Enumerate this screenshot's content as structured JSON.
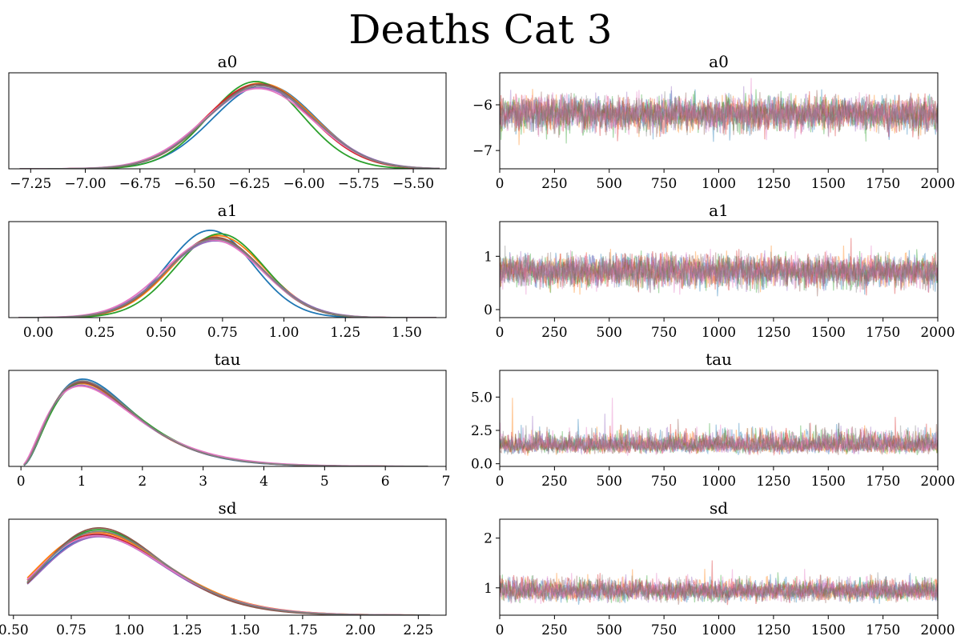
{
  "figure": {
    "title": "Deaths Cat 3",
    "colors": [
      "#1f77b4",
      "#ff7f0e",
      "#2ca02c",
      "#d62728",
      "#9467bd",
      "#8c564b",
      "#e377c2",
      "#7f7f7f"
    ]
  },
  "chart_data": [
    {
      "type": "line",
      "variant": "kde",
      "title": "a0",
      "xlim": [
        -7.35,
        -5.35
      ],
      "ylim": [
        0,
        1.1
      ],
      "xticks": [
        -7.25,
        -7.0,
        -6.75,
        -6.5,
        -6.25,
        -6.0,
        -5.75,
        -5.5
      ],
      "xtick_labels": [
        "−7.25",
        "−7.00",
        "−6.75",
        "−6.50",
        "−6.25",
        "−6.00",
        "−5.75",
        "−5.50"
      ],
      "yticks_shown": false,
      "x_range": [
        -7.3,
        -5.38
      ],
      "series": [
        {
          "mu": -6.18,
          "sd": 0.235,
          "peak": 0.96
        },
        {
          "mu": -6.2,
          "sd": 0.245,
          "peak": 0.98
        },
        {
          "mu": -6.22,
          "sd": 0.215,
          "peak": 1.0
        },
        {
          "mu": -6.21,
          "sd": 0.24,
          "peak": 0.97
        },
        {
          "mu": -6.2,
          "sd": 0.25,
          "peak": 0.93
        },
        {
          "mu": -6.2,
          "sd": 0.24,
          "peak": 0.97
        },
        {
          "mu": -6.21,
          "sd": 0.25,
          "peak": 0.92
        },
        {
          "mu": -6.2,
          "sd": 0.245,
          "peak": 0.95
        }
      ]
    },
    {
      "type": "line",
      "variant": "trace",
      "title": "a0",
      "xlim": [
        0,
        2000
      ],
      "ylim": [
        -7.4,
        -5.3
      ],
      "xticks": [
        0,
        250,
        500,
        750,
        1000,
        1250,
        1500,
        1750,
        2000
      ],
      "yticks": [
        -7,
        -6
      ],
      "ytick_labels": [
        "−7",
        "−6"
      ],
      "mean": -6.2,
      "spread": 0.24,
      "skew": 0,
      "min_value": -7.3,
      "max_value": -5.35
    },
    {
      "type": "line",
      "variant": "kde",
      "title": "a1",
      "xlim": [
        -0.12,
        1.66
      ],
      "ylim": [
        0,
        1.1
      ],
      "xticks": [
        0.0,
        0.25,
        0.5,
        0.75,
        1.0,
        1.25,
        1.5
      ],
      "xtick_labels": [
        "0.00",
        "0.25",
        "0.50",
        "0.75",
        "1.00",
        "1.25",
        "1.50"
      ],
      "yticks_shown": false,
      "x_range": [
        -0.08,
        1.62
      ],
      "series": [
        {
          "mu": 0.7,
          "sd": 0.175,
          "peak": 1.0
        },
        {
          "mu": 0.73,
          "sd": 0.19,
          "peak": 0.94
        },
        {
          "mu": 0.74,
          "sd": 0.18,
          "peak": 0.96
        },
        {
          "mu": 0.72,
          "sd": 0.195,
          "peak": 0.91
        },
        {
          "mu": 0.72,
          "sd": 0.2,
          "peak": 0.88
        },
        {
          "mu": 0.72,
          "sd": 0.19,
          "peak": 0.92
        },
        {
          "mu": 0.71,
          "sd": 0.2,
          "peak": 0.89
        },
        {
          "mu": 0.72,
          "sd": 0.195,
          "peak": 0.9
        }
      ]
    },
    {
      "type": "line",
      "variant": "trace",
      "title": "a1",
      "xlim": [
        0,
        2000
      ],
      "ylim": [
        -0.15,
        1.65
      ],
      "xticks": [
        0,
        250,
        500,
        750,
        1000,
        1250,
        1500,
        1750,
        2000
      ],
      "yticks": [
        0,
        1
      ],
      "ytick_labels": [
        "0",
        "1"
      ],
      "mean": 0.72,
      "spread": 0.19,
      "skew": 0,
      "min_value": -0.08,
      "max_value": 1.6
    },
    {
      "type": "line",
      "variant": "kde",
      "title": "tau",
      "xlim": [
        -0.2,
        7.0
      ],
      "ylim": [
        0,
        1.1
      ],
      "xticks": [
        0,
        1,
        2,
        3,
        4,
        5,
        6,
        7
      ],
      "xtick_labels": [
        "0",
        "1",
        "2",
        "3",
        "4",
        "5",
        "6",
        "7"
      ],
      "yticks_shown": false,
      "x_range": [
        0.05,
        6.7
      ],
      "series": [
        {
          "mode": 1.02,
          "shape": 3.2,
          "peak": 1.0
        },
        {
          "mode": 1.0,
          "shape": 3.0,
          "peak": 0.95
        },
        {
          "mode": 1.03,
          "shape": 3.1,
          "peak": 0.96
        },
        {
          "mode": 1.0,
          "shape": 3.05,
          "peak": 0.97
        },
        {
          "mode": 0.99,
          "shape": 2.9,
          "peak": 0.93
        },
        {
          "mode": 1.0,
          "shape": 3.0,
          "peak": 0.96
        },
        {
          "mode": 0.98,
          "shape": 2.8,
          "peak": 0.92
        },
        {
          "mode": 1.01,
          "shape": 3.1,
          "peak": 0.98
        }
      ]
    },
    {
      "type": "line",
      "variant": "trace",
      "title": "tau",
      "xlim": [
        0,
        2000
      ],
      "ylim": [
        -0.2,
        7.0
      ],
      "xticks": [
        0,
        250,
        500,
        750,
        1000,
        1250,
        1500,
        1750,
        2000
      ],
      "yticks": [
        0.0,
        2.5,
        5.0
      ],
      "ytick_labels": [
        "0.0",
        "2.5",
        "5.0"
      ],
      "mean": 1.35,
      "spread": 0.55,
      "skew": 1,
      "min_value": 0.05,
      "max_value": 6.7
    },
    {
      "type": "line",
      "variant": "kde",
      "title": "sd",
      "xlim": [
        0.48,
        2.37
      ],
      "ylim": [
        0,
        1.1
      ],
      "xticks": [
        0.5,
        0.75,
        1.0,
        1.25,
        1.5,
        1.75,
        2.0,
        2.25
      ],
      "xtick_labels": [
        "0.50",
        "0.75",
        "1.00",
        "1.25",
        "1.50",
        "1.75",
        "2.00",
        "2.25"
      ],
      "yticks_shown": false,
      "x_range": [
        0.56,
        2.3
      ],
      "series": [
        {
          "mode": 0.87,
          "shape": 12,
          "peak": 0.92
        },
        {
          "mode": 0.86,
          "shape": 11,
          "peak": 0.95
        },
        {
          "mode": 0.87,
          "shape": 12.5,
          "peak": 0.98
        },
        {
          "mode": 0.86,
          "shape": 11.5,
          "peak": 0.93
        },
        {
          "mode": 0.87,
          "shape": 12,
          "peak": 0.9
        },
        {
          "mode": 0.87,
          "shape": 13,
          "peak": 1.0
        },
        {
          "mode": 0.86,
          "shape": 11,
          "peak": 0.91
        },
        {
          "mode": 0.87,
          "shape": 12,
          "peak": 0.96
        }
      ]
    },
    {
      "type": "line",
      "variant": "trace",
      "title": "sd",
      "xlim": [
        0,
        2000
      ],
      "ylim": [
        0.45,
        2.38
      ],
      "xticks": [
        0,
        250,
        500,
        750,
        1000,
        1250,
        1500,
        1750,
        2000
      ],
      "yticks": [
        1,
        2
      ],
      "ytick_labels": [
        "1",
        "2"
      ],
      "mean": 0.93,
      "spread": 0.16,
      "skew": 1,
      "min_value": 0.5,
      "max_value": 2.28
    }
  ]
}
